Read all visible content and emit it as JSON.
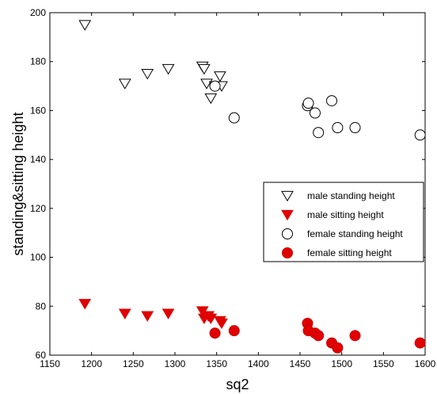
{
  "chart_data": {
    "type": "scatter",
    "xlabel": "sq2",
    "ylabel": "standing&sitting height",
    "xlim": [
      1150,
      1600
    ],
    "ylim": [
      60,
      200
    ],
    "xticks": [
      "1150",
      "1200",
      "1250",
      "1300",
      "1350",
      "1400",
      "1450",
      "1500",
      "1550",
      "1600"
    ],
    "yticks": [
      "60",
      "80",
      "100",
      "120",
      "140",
      "160",
      "180",
      "200"
    ],
    "grid": false,
    "legend_position": "right",
    "series": [
      {
        "name": "male standing height",
        "marker": "triangle-down",
        "fill": "#ffffff",
        "stroke": "#000000",
        "points": [
          [
            1192,
            195
          ],
          [
            1240,
            171
          ],
          [
            1267,
            175
          ],
          [
            1292,
            177
          ],
          [
            1333,
            178
          ],
          [
            1335,
            177
          ],
          [
            1338,
            171
          ],
          [
            1343,
            165
          ],
          [
            1348,
            170
          ],
          [
            1354,
            174
          ],
          [
            1356,
            170
          ]
        ]
      },
      {
        "name": "male sitting height",
        "marker": "triangle-down",
        "fill": "#e00000",
        "stroke": "#e00000",
        "points": [
          [
            1192,
            81
          ],
          [
            1240,
            77
          ],
          [
            1267,
            76
          ],
          [
            1292,
            77
          ],
          [
            1333,
            78
          ],
          [
            1335,
            75
          ],
          [
            1340,
            76
          ],
          [
            1343,
            75
          ],
          [
            1354,
            74
          ],
          [
            1356,
            73
          ]
        ]
      },
      {
        "name": "female standing height",
        "marker": "circle",
        "fill": "#ffffff",
        "stroke": "#000000",
        "points": [
          [
            1348,
            170
          ],
          [
            1371,
            157
          ],
          [
            1459,
            162
          ],
          [
            1460,
            163
          ],
          [
            1468,
            159
          ],
          [
            1472,
            151
          ],
          [
            1488,
            164
          ],
          [
            1495,
            153
          ],
          [
            1516,
            153
          ],
          [
            1594,
            150
          ]
        ]
      },
      {
        "name": "female sitting height",
        "marker": "circle",
        "fill": "#e00000",
        "stroke": "#cc0000",
        "points": [
          [
            1348,
            69
          ],
          [
            1371,
            70
          ],
          [
            1459,
            73
          ],
          [
            1460,
            70
          ],
          [
            1468,
            69
          ],
          [
            1472,
            68
          ],
          [
            1488,
            65
          ],
          [
            1495,
            63
          ],
          [
            1516,
            68
          ],
          [
            1594,
            65
          ]
        ]
      }
    ]
  }
}
